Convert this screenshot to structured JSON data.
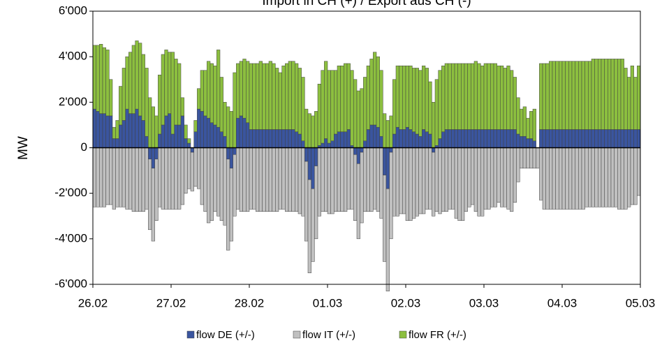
{
  "chart_data": {
    "type": "stacked-bar",
    "title": "Import in CH (+) / Export aus CH (-)",
    "y_label": "MW",
    "ylim": [
      -6000,
      6000
    ],
    "yticks": [
      {
        "value": -6000,
        "label": "-6'000"
      },
      {
        "value": -4000,
        "label": "-4'000"
      },
      {
        "value": -2000,
        "label": "-2'000"
      },
      0,
      {
        "value": 2000,
        "label": "2'000"
      },
      {
        "value": 4000,
        "label": "4'000"
      },
      {
        "value": 6000,
        "label": "6'000"
      }
    ],
    "xlim": [
      0,
      168
    ],
    "xticks": [
      {
        "value": 0,
        "label": "26.02"
      },
      {
        "value": 24,
        "label": "27.02"
      },
      {
        "value": 48,
        "label": "28.02"
      },
      {
        "value": 72,
        "label": "01.03"
      },
      {
        "value": 96,
        "label": "02.03"
      },
      {
        "value": 120,
        "label": "03.03"
      },
      {
        "value": 144,
        "label": "04.03"
      },
      {
        "value": 168,
        "label": "05.03"
      }
    ],
    "legend": "bottom",
    "x": [
      0,
      1,
      2,
      3,
      4,
      5,
      6,
      7,
      8,
      9,
      10,
      11,
      12,
      13,
      14,
      15,
      16,
      17,
      18,
      19,
      20,
      21,
      22,
      23,
      24,
      25,
      26,
      27,
      28,
      29,
      30,
      31,
      32,
      33,
      34,
      35,
      36,
      37,
      38,
      39,
      40,
      41,
      42,
      43,
      44,
      45,
      46,
      47,
      48,
      49,
      50,
      51,
      52,
      53,
      54,
      55,
      56,
      57,
      58,
      59,
      60,
      61,
      62,
      63,
      64,
      65,
      66,
      67,
      68,
      69,
      70,
      71,
      72,
      73,
      74,
      75,
      76,
      77,
      78,
      79,
      80,
      81,
      82,
      83,
      84,
      85,
      86,
      87,
      88,
      89,
      90,
      91,
      92,
      93,
      94,
      95,
      96,
      97,
      98,
      99,
      100,
      101,
      102,
      103,
      104,
      105,
      106,
      107,
      108,
      109,
      110,
      111,
      112,
      113,
      114,
      115,
      116,
      117,
      118,
      119,
      120,
      121,
      122,
      123,
      124,
      125,
      126,
      127,
      128,
      129,
      130,
      131,
      132,
      133,
      134,
      135,
      136,
      137,
      138,
      139,
      140,
      141,
      142,
      143,
      144,
      145,
      146,
      147,
      148,
      149,
      150,
      151,
      152,
      153,
      154,
      155,
      156,
      157,
      158,
      159,
      160,
      161,
      162,
      163,
      164,
      165,
      166,
      167
    ],
    "series": [
      {
        "name": "flow DE (+/-)",
        "color": "#3a559f",
        "values": [
          1700,
          1600,
          1500,
          1500,
          1400,
          1400,
          400,
          400,
          1000,
          1200,
          1700,
          1500,
          1500,
          1700,
          1400,
          1200,
          500,
          -500,
          -900,
          -500,
          600,
          1000,
          1400,
          1500,
          600,
          1000,
          1000,
          1400,
          400,
          200,
          -200,
          700,
          1700,
          1600,
          1400,
          1300,
          1100,
          1000,
          900,
          700,
          500,
          -500,
          -900,
          -300,
          1300,
          1400,
          1300,
          1100,
          800,
          800,
          800,
          800,
          800,
          800,
          800,
          800,
          800,
          800,
          800,
          800,
          800,
          800,
          700,
          600,
          300,
          -600,
          -1400,
          -1800,
          -800,
          100,
          200,
          400,
          200,
          300,
          600,
          700,
          700,
          700,
          800,
          100,
          -300,
          -700,
          -200,
          300,
          800,
          1000,
          1000,
          900,
          500,
          -1200,
          -1800,
          -200,
          600,
          900,
          800,
          800,
          900,
          800,
          700,
          600,
          500,
          800,
          700,
          600,
          -200,
          100,
          400,
          700,
          800,
          800,
          800,
          800,
          800,
          800,
          800,
          800,
          800,
          800,
          800,
          800,
          800,
          800,
          800,
          800,
          800,
          800,
          800,
          800,
          800,
          800,
          600,
          500,
          500,
          400,
          400,
          300,
          0,
          800,
          800,
          800,
          800,
          800,
          800,
          800,
          800,
          800,
          800,
          800,
          800,
          800,
          800,
          800,
          800,
          800,
          800,
          800,
          800,
          800,
          800,
          800,
          800,
          800,
          800,
          800,
          800,
          800,
          800,
          800
        ]
      },
      {
        "name": "flow IT (+/-)",
        "color": "#c0c0c0",
        "values": [
          -2600,
          -2600,
          -2600,
          -2600,
          -2500,
          -2500,
          -2700,
          -2600,
          -2600,
          -2600,
          -2700,
          -2700,
          -2800,
          -2800,
          -2800,
          -2800,
          -2700,
          -3100,
          -3200,
          -2700,
          -2600,
          -2700,
          -2700,
          -2700,
          -2700,
          -2700,
          -2700,
          -2500,
          -2000,
          -1800,
          -1700,
          -1700,
          -1800,
          -2500,
          -2800,
          -3300,
          -3200,
          -2800,
          -3000,
          -3200,
          -3400,
          -4000,
          -3200,
          -2700,
          -2700,
          -2800,
          -2800,
          -2800,
          -2700,
          -2700,
          -2800,
          -2800,
          -2800,
          -2800,
          -2800,
          -2800,
          -2800,
          -2700,
          -2700,
          -2800,
          -2800,
          -2800,
          -2800,
          -2900,
          -3000,
          -3500,
          -4100,
          -3200,
          -3200,
          -3000,
          -2800,
          -2800,
          -2900,
          -2900,
          -2800,
          -2800,
          -2800,
          -2800,
          -2700,
          -2700,
          -2900,
          -3300,
          -3100,
          -2800,
          -2800,
          -2800,
          -2700,
          -2800,
          -3100,
          -3800,
          -4500,
          -3800,
          -3000,
          -3000,
          -2900,
          -2900,
          -3200,
          -3200,
          -3100,
          -3000,
          -2900,
          -2900,
          -2700,
          -2700,
          -2800,
          -2800,
          -2900,
          -2800,
          -2800,
          -2700,
          -2700,
          -3100,
          -3200,
          -3200,
          -2800,
          -2600,
          -2500,
          -2800,
          -3000,
          -3000,
          -2700,
          -2700,
          -2600,
          -2600,
          -2400,
          -2600,
          -2600,
          -2700,
          -2800,
          -2400,
          -1500,
          -900,
          -900,
          -900,
          -900,
          -900,
          -900,
          -2300,
          -2700,
          -2700,
          -2700,
          -2700,
          -2700,
          -2700,
          -2700,
          -2700,
          -2700,
          -2700,
          -2700,
          -2700,
          -2700,
          -2600,
          -2600,
          -2600,
          -2600,
          -2600,
          -2600,
          -2600,
          -2600,
          -2600,
          -2600,
          -2700,
          -2700,
          -2700,
          -2600,
          -2500,
          -2500,
          -2100
        ]
      },
      {
        "name": "flow FR (+/-)",
        "color": "#8cbf3f",
        "values": [
          2800,
          2900,
          3050,
          2900,
          2900,
          1600,
          500,
          800,
          1700,
          2300,
          2300,
          2700,
          3000,
          3000,
          3200,
          2900,
          3000,
          2200,
          1800,
          1400,
          2600,
          3100,
          2900,
          2700,
          3600,
          2900,
          2700,
          800,
          600,
          200,
          0,
          500,
          900,
          1800,
          2000,
          2500,
          2600,
          2600,
          3400,
          2400,
          1500,
          1800,
          1600,
          3300,
          2400,
          2400,
          2600,
          2700,
          2900,
          2900,
          2900,
          3000,
          2900,
          2900,
          3000,
          2900,
          2700,
          2500,
          2800,
          2900,
          3000,
          3000,
          3000,
          2900,
          2800,
          1700,
          1500,
          1400,
          1600,
          2700,
          3200,
          3400,
          3200,
          3100,
          2800,
          2900,
          2900,
          3000,
          2900,
          3300,
          3000,
          2500,
          2600,
          2800,
          2800,
          2900,
          3200,
          3100,
          2900,
          1500,
          1200,
          1400,
          2400,
          2700,
          2800,
          2800,
          2700,
          2800,
          2800,
          2900,
          2900,
          2800,
          2800,
          2300,
          2000,
          2900,
          3000,
          2900,
          2900,
          2900,
          2900,
          2900,
          2900,
          2900,
          2900,
          2900,
          2900,
          3000,
          2900,
          2800,
          2900,
          2900,
          2900,
          2900,
          2800,
          2800,
          2700,
          2800,
          2600,
          2300,
          1600,
          1200,
          1300,
          900,
          1200,
          1400,
          0,
          2900,
          2900,
          2900,
          3000,
          3000,
          3000,
          3000,
          3000,
          3000,
          3000,
          3000,
          3000,
          3000,
          3000,
          3000,
          3000,
          3100,
          3100,
          3100,
          3100,
          3100,
          3100,
          3100,
          3100,
          3100,
          3100,
          2700,
          2300,
          2800,
          2300,
          2800
        ]
      }
    ]
  }
}
